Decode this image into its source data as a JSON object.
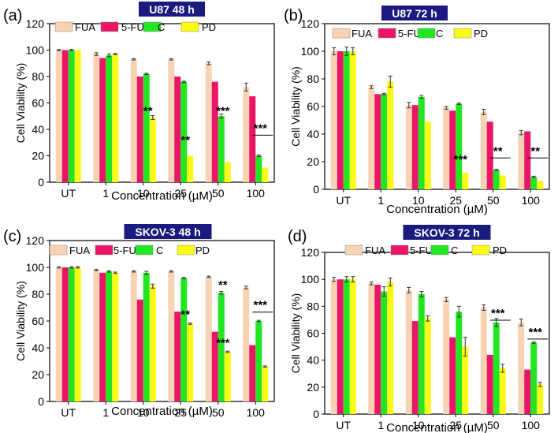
{
  "figure": {
    "series_names": [
      "FUA",
      "5-FU",
      "C",
      "PD"
    ],
    "colors": {
      "FUA": "#f7d3b4",
      "5-FU": "#ea1566",
      "C": "#22e622",
      "PD": "#fafa14",
      "badge": "#1a1a80",
      "axis": "#000000"
    }
  },
  "chart_data": [
    {
      "type": "bar",
      "panel_label": "(a)",
      "title": "U87 48 h",
      "categories": [
        "UT",
        "1",
        "10",
        "25",
        "50",
        "100"
      ],
      "xlabel": "Concentration (µM)",
      "ylabel": "Cell Viability (%)",
      "ylim": [
        0,
        120
      ],
      "yticks": [
        0,
        20,
        40,
        60,
        80,
        100,
        120
      ],
      "series": [
        {
          "name": "FUA",
          "values": [
            100,
            97,
            93,
            93,
            90,
            72
          ],
          "errors": [
            0.5,
            1,
            0.5,
            0.5,
            1,
            3
          ]
        },
        {
          "name": "5-FU",
          "values": [
            100,
            94,
            80,
            80,
            76,
            65
          ],
          "errors": [
            0,
            0,
            0,
            0,
            0,
            0
          ]
        },
        {
          "name": "C",
          "values": [
            100,
            96,
            82,
            76,
            50,
            20
          ],
          "errors": [
            0.5,
            1,
            0.5,
            0.5,
            1.5,
            0.5
          ]
        },
        {
          "name": "PD",
          "values": [
            100,
            97,
            49,
            20,
            15,
            11
          ],
          "errors": [
            0,
            0.5,
            1.5,
            0,
            0,
            0
          ]
        }
      ],
      "annotations": [
        {
          "text": "**",
          "category": "10",
          "y": 51
        },
        {
          "text": "**",
          "category": "25",
          "y": 29
        },
        {
          "text": "***",
          "category": "50",
          "y": 51
        },
        {
          "text": "***",
          "category": "100",
          "y": 38,
          "bracket": true
        }
      ]
    },
    {
      "type": "bar",
      "panel_label": "(b)",
      "title": "U87 72 h",
      "categories": [
        "UT",
        "1",
        "10",
        "25",
        "50",
        "100"
      ],
      "xlabel": "Concentration (µM)",
      "ylabel": "Cell Viability (%)",
      "ylim": [
        0,
        120
      ],
      "yticks": [
        0,
        20,
        40,
        60,
        80,
        100,
        120
      ],
      "series": [
        {
          "name": "FUA",
          "values": [
            100,
            74,
            61,
            59,
            56,
            41
          ],
          "errors": [
            2.5,
            1,
            2,
            1,
            2,
            1.5
          ]
        },
        {
          "name": "5-FU",
          "values": [
            100,
            69,
            61,
            57,
            49,
            42
          ],
          "errors": [
            0,
            0,
            0,
            0,
            0,
            0
          ]
        },
        {
          "name": "C",
          "values": [
            100,
            69,
            67,
            62,
            14,
            9
          ],
          "errors": [
            3,
            0.5,
            1,
            0.5,
            0.5,
            0.5
          ]
        },
        {
          "name": "PD",
          "values": [
            100,
            78,
            49,
            12,
            10,
            6
          ],
          "errors": [
            2.5,
            4,
            0,
            0,
            0,
            0
          ]
        }
      ],
      "annotations": [
        {
          "text": "***",
          "category": "25",
          "y": 19
        },
        {
          "text": "**",
          "category": "50",
          "y": 25,
          "bracket": true
        },
        {
          "text": "**",
          "category": "100",
          "y": 25,
          "bracket": true
        }
      ]
    },
    {
      "type": "bar",
      "panel_label": "(c)",
      "title": "SKOV-3 48 h",
      "categories": [
        "UT",
        "1",
        "10",
        "25",
        "50",
        "100"
      ],
      "xlabel": "Concentration (µM)",
      "ylabel": "Cell Viability (%)",
      "ylim": [
        0,
        120
      ],
      "yticks": [
        0,
        20,
        40,
        60,
        80,
        100,
        120
      ],
      "series": [
        {
          "name": "FUA",
          "values": [
            100,
            98,
            97,
            97,
            93,
            85
          ],
          "errors": [
            0.5,
            0.5,
            0.5,
            0.5,
            0.5,
            1
          ]
        },
        {
          "name": "5-FU",
          "values": [
            100,
            96,
            76,
            67,
            52,
            42
          ],
          "errors": [
            0,
            0,
            0,
            0,
            0,
            0
          ]
        },
        {
          "name": "C",
          "values": [
            100,
            97,
            96,
            92,
            81,
            60
          ],
          "errors": [
            0.5,
            0.5,
            1,
            0.5,
            1,
            0.5
          ]
        },
        {
          "name": "PD",
          "values": [
            100,
            96,
            86,
            58,
            37,
            26
          ],
          "errors": [
            0.5,
            0.5,
            1.5,
            0.5,
            0.5,
            0.5
          ]
        }
      ],
      "annotations": [
        {
          "text": "**",
          "category": "25",
          "y": 62
        },
        {
          "text": "**",
          "category": "50",
          "y": 84
        },
        {
          "text": "***",
          "category": "50",
          "y": 41
        },
        {
          "text": "***",
          "category": "100",
          "y": 69,
          "bracket": true
        }
      ]
    },
    {
      "type": "bar",
      "panel_label": "(d)",
      "title": "SKOV-3 72 h",
      "categories": [
        "UT",
        "1",
        "10",
        "25",
        "50",
        "100"
      ],
      "xlabel": "Concentration (µM)",
      "ylabel": "Cell Viability (%)",
      "ylim": [
        0,
        120
      ],
      "yticks": [
        0,
        20,
        40,
        60,
        80,
        100,
        120
      ],
      "series": [
        {
          "name": "FUA",
          "values": [
            100,
            97,
            92,
            85,
            79,
            68
          ],
          "errors": [
            1.5,
            1,
            2,
            1.5,
            2,
            2.5
          ]
        },
        {
          "name": "5-FU",
          "values": [
            100,
            96,
            69,
            57,
            44,
            33
          ],
          "errors": [
            0,
            0,
            0,
            0,
            0,
            0
          ]
        },
        {
          "name": "C",
          "values": [
            100,
            91,
            89,
            76,
            68,
            53
          ],
          "errors": [
            2,
            3.5,
            2,
            4,
            3,
            0.5
          ]
        },
        {
          "name": "PD",
          "values": [
            100,
            98,
            71,
            50,
            34,
            22
          ],
          "errors": [
            2,
            3,
            2,
            7,
            3,
            1.5
          ]
        }
      ],
      "annotations": [
        {
          "text": "***",
          "category": "50",
          "y": 72,
          "bracket": true
        },
        {
          "text": "***",
          "category": "100",
          "y": 58,
          "bracket": true
        }
      ]
    }
  ]
}
